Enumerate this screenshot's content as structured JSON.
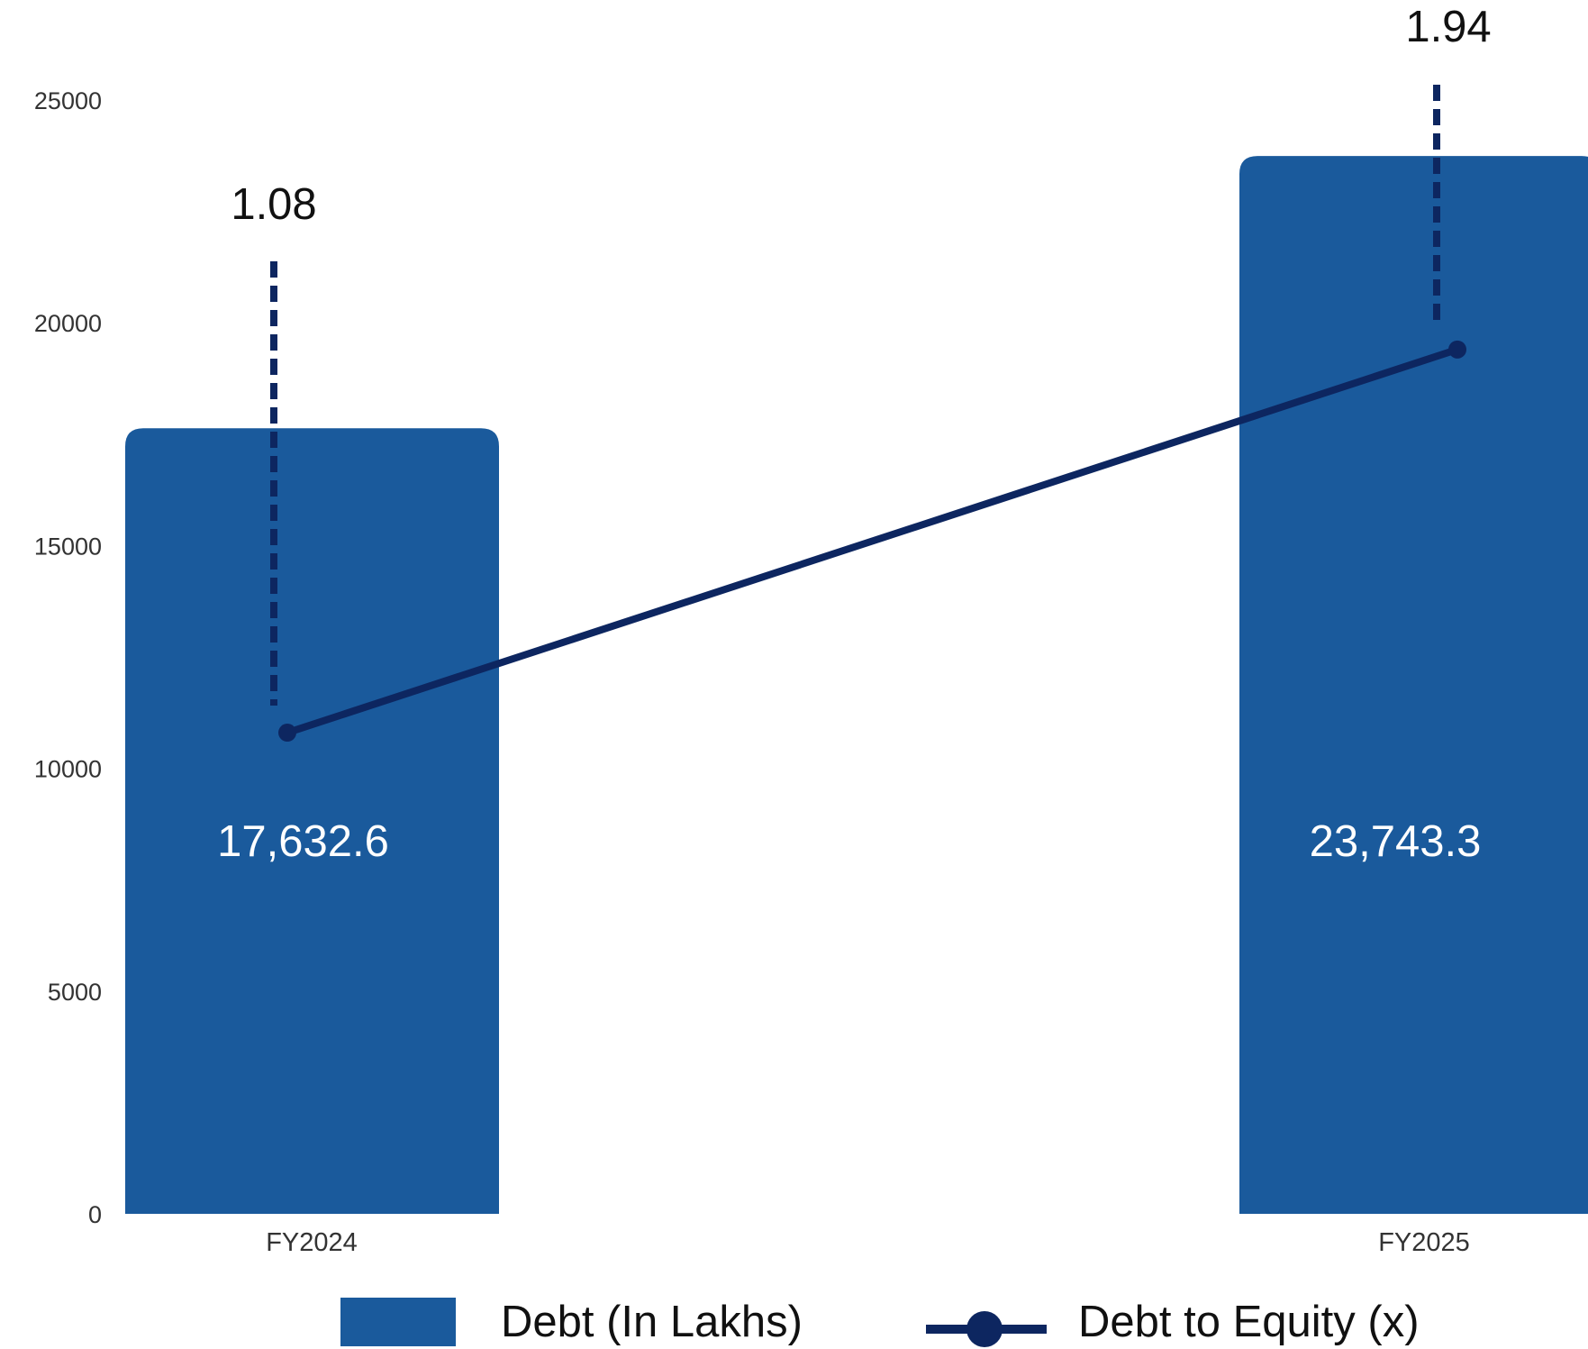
{
  "chart_data": {
    "type": "bar",
    "categories": [
      "FY2024",
      "FY2025"
    ],
    "ylim": [
      0,
      25000
    ],
    "yticks": [
      0,
      5000,
      10000,
      15000,
      20000,
      25000
    ],
    "grid": false,
    "legend_placement": "bottom",
    "series": [
      {
        "name": "Debt (In Lakhs)",
        "type": "bar",
        "values": [
          17632.6,
          23743.3
        ],
        "labels": [
          "17,632.6",
          "23,743.3"
        ],
        "color": "#1a5a9c"
      },
      {
        "name": "Debt to Equity (x)",
        "type": "line",
        "values": [
          1.08,
          1.94
        ],
        "labels": [
          "1.08",
          "1.94"
        ],
        "color": "#0d2660"
      }
    ]
  }
}
